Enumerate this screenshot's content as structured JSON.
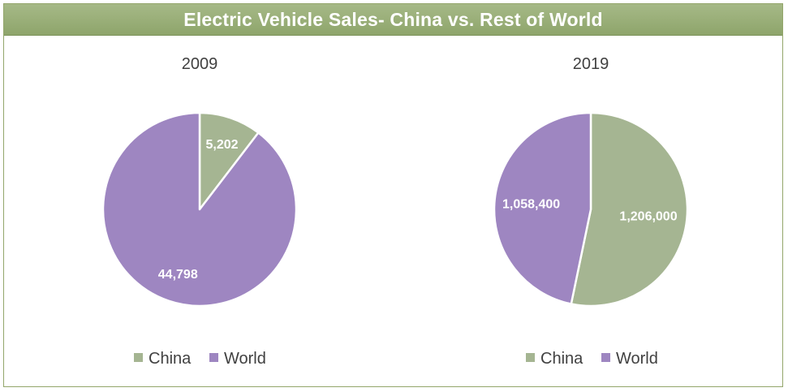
{
  "title": "Electric Vehicle Sales- China vs. Rest of World",
  "colors": {
    "china": "#a5b592",
    "world": "#9e86c1",
    "title_bar": "#9bb07a",
    "border": "#93a66b"
  },
  "chart_data": [
    {
      "type": "pie",
      "title": "2009",
      "labels": [
        "China",
        "World"
      ],
      "values": [
        5202,
        44798
      ],
      "data_labels": [
        "5,202",
        "44,798"
      ],
      "legend": "bottom"
    },
    {
      "type": "pie",
      "title": "2019",
      "labels": [
        "China",
        "World"
      ],
      "values": [
        1206000,
        1058400
      ],
      "data_labels": [
        "1,206,000",
        "1,058,400"
      ],
      "legend": "bottom"
    }
  ]
}
